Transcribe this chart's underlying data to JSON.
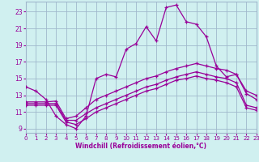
{
  "xlabel": "Windchill (Refroidissement éolien,°C)",
  "bg_color": "#d0f0f0",
  "grid_color": "#a0b8cc",
  "line_color": "#990099",
  "xlim": [
    0,
    23
  ],
  "ylim": [
    8.5,
    24.2
  ],
  "xticks": [
    0,
    1,
    2,
    3,
    4,
    5,
    6,
    7,
    8,
    9,
    10,
    11,
    12,
    13,
    14,
    15,
    16,
    17,
    18,
    19,
    20,
    21,
    22,
    23
  ],
  "yticks": [
    9,
    11,
    13,
    15,
    17,
    19,
    21,
    23
  ],
  "line1_y": [
    14.0,
    13.5,
    12.5,
    10.5,
    9.5,
    9.0,
    10.5,
    15.0,
    15.5,
    15.2,
    18.5,
    19.2,
    21.2,
    19.5,
    23.5,
    23.8,
    21.8,
    21.5,
    20.0,
    16.5,
    15.2,
    15.5,
    13.5,
    13.0
  ],
  "line2_y": [
    12.2,
    12.2,
    12.2,
    12.3,
    10.2,
    10.5,
    11.5,
    12.5,
    13.0,
    13.5,
    14.0,
    14.5,
    15.0,
    15.3,
    15.8,
    16.2,
    16.5,
    16.8,
    16.5,
    16.2,
    16.0,
    15.5,
    13.2,
    12.5
  ],
  "line3_y": [
    12.0,
    12.0,
    12.0,
    12.0,
    10.0,
    10.0,
    10.8,
    11.5,
    12.0,
    12.5,
    13.0,
    13.5,
    14.0,
    14.3,
    14.8,
    15.2,
    15.5,
    15.8,
    15.5,
    15.2,
    15.0,
    14.5,
    11.8,
    11.5
  ],
  "line4_y": [
    11.8,
    11.8,
    11.8,
    11.8,
    9.8,
    9.5,
    10.2,
    11.0,
    11.5,
    12.0,
    12.5,
    13.0,
    13.5,
    13.8,
    14.3,
    14.8,
    15.0,
    15.3,
    15.0,
    14.8,
    14.5,
    14.0,
    11.5,
    11.2
  ]
}
